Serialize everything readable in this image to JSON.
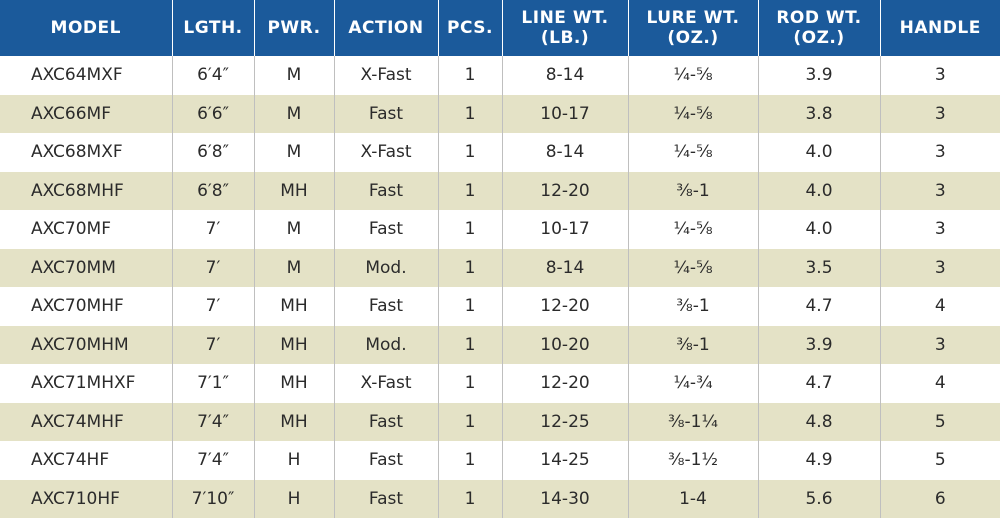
{
  "headers": [
    "MODEL",
    "LGTH.",
    "PWR.",
    "ACTION",
    "PCS.",
    "LINE WT. (LB.)",
    "LURE WT. (OZ.)",
    "ROD WT. (OZ.)",
    "HANDLE"
  ],
  "rows": [
    [
      "AXC64MXF",
      "6′4″",
      "M",
      "X-Fast",
      "1",
      "8-14",
      "¼-⅝",
      "3.9",
      "3"
    ],
    [
      "AXC66MF",
      "6′6″",
      "M",
      "Fast",
      "1",
      "10-17",
      "¼-⅝",
      "3.8",
      "3"
    ],
    [
      "AXC68MXF",
      "6′8″",
      "M",
      "X-Fast",
      "1",
      "8-14",
      "¼-⅝",
      "4.0",
      "3"
    ],
    [
      "AXC68MHF",
      "6′8″",
      "MH",
      "Fast",
      "1",
      "12-20",
      "⅜-1",
      "4.0",
      "3"
    ],
    [
      "AXC70MF",
      "7′",
      "M",
      "Fast",
      "1",
      "10-17",
      "¼-⅝",
      "4.0",
      "3"
    ],
    [
      "AXC70MM",
      "7′",
      "M",
      "Mod.",
      "1",
      "8-14",
      "¼-⅝",
      "3.5",
      "3"
    ],
    [
      "AXC70MHF",
      "7′",
      "MH",
      "Fast",
      "1",
      "12-20",
      "⅜-1",
      "4.7",
      "4"
    ],
    [
      "AXC70MHM",
      "7′",
      "MH",
      "Mod.",
      "1",
      "10-20",
      "⅜-1",
      "3.9",
      "3"
    ],
    [
      "AXC71MHXF",
      "7′1″",
      "MH",
      "X-Fast",
      "1",
      "12-20",
      "¼-¾",
      "4.7",
      "4"
    ],
    [
      "AXC74MHF",
      "7′4″",
      "MH",
      "Fast",
      "1",
      "12-25",
      "⅜-1¼",
      "4.8",
      "5"
    ],
    [
      "AXC74HF",
      "7′4″",
      "H",
      "Fast",
      "1",
      "14-25",
      "⅜-1½",
      "4.9",
      "5"
    ],
    [
      "AXC710HF",
      "7′10″",
      "H",
      "Fast",
      "1",
      "14-30",
      "1-4",
      "5.6",
      "6"
    ]
  ]
}
